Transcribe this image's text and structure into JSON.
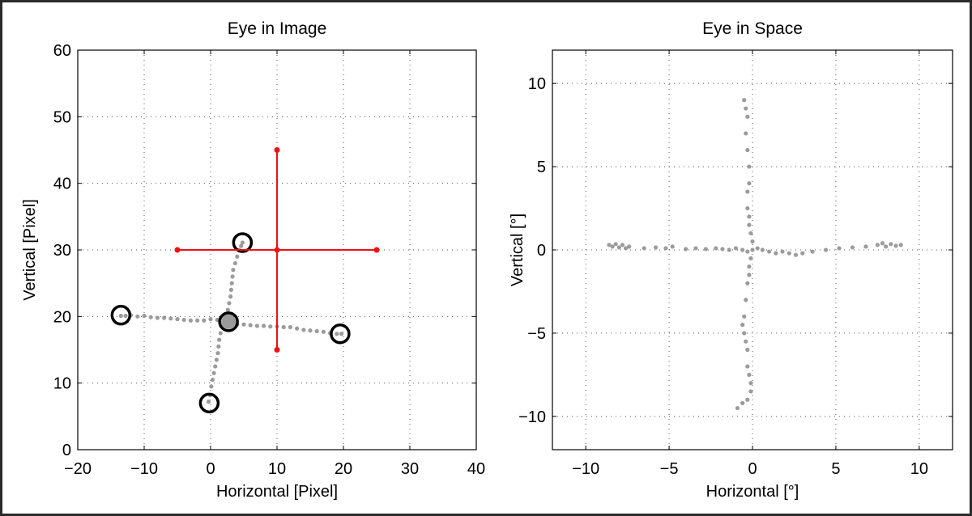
{
  "chart_data": [
    {
      "type": "scatter",
      "title": "Eye in Image",
      "xlabel": "Horizontal [Pixel]",
      "ylabel": "Vertical [Pixel]",
      "xlim": [
        -20,
        40
      ],
      "ylim": [
        0,
        60
      ],
      "xticks": [
        -20,
        -10,
        0,
        10,
        20,
        30,
        40
      ],
      "yticks": [
        0,
        10,
        20,
        30,
        40,
        50,
        60
      ],
      "xtick_labels": [
        "−20",
        "−10",
        "0",
        "10",
        "20",
        "30",
        "40"
      ],
      "ytick_labels": [
        "0",
        "10",
        "20",
        "30",
        "40",
        "50",
        "60"
      ],
      "grid": true,
      "point_color": "#9b9b9b",
      "series": [
        {
          "values": [
            [
              -13.5,
              20.1
            ],
            [
              -12.8,
              20.1
            ],
            [
              -12,
              20.2
            ],
            [
              -11,
              20
            ],
            [
              -10,
              20.1
            ],
            [
              -9,
              19.9
            ],
            [
              -8,
              19.8
            ],
            [
              -7,
              19.8
            ],
            [
              -6,
              19.7
            ],
            [
              -5,
              19.6
            ],
            [
              -4,
              19.5
            ],
            [
              -3,
              19.4
            ],
            [
              -2,
              19.4
            ],
            [
              -1,
              19.4
            ],
            [
              0,
              19.6
            ],
            [
              1,
              19.5
            ],
            [
              2,
              19.3
            ],
            [
              3,
              19.1
            ],
            [
              4,
              18.8
            ],
            [
              5,
              18.8
            ],
            [
              6,
              18.7
            ],
            [
              7,
              18.6
            ],
            [
              8,
              18.6
            ],
            [
              9,
              18.5
            ],
            [
              10,
              18.5
            ],
            [
              11,
              18.4
            ],
            [
              12,
              18.4
            ],
            [
              13,
              18.2
            ],
            [
              14,
              18
            ],
            [
              15,
              17.9
            ],
            [
              16,
              17.8
            ],
            [
              17,
              17.7
            ],
            [
              18,
              17.5
            ],
            [
              19,
              17.4
            ],
            [
              19.7,
              17.4
            ],
            [
              -0.3,
              7.2
            ],
            [
              -0.1,
              8.2
            ],
            [
              0.1,
              9.5
            ],
            [
              0.3,
              10.5
            ],
            [
              0.5,
              11.5
            ],
            [
              0.7,
              12.5
            ],
            [
              0.9,
              13.5
            ],
            [
              1.1,
              14.5
            ],
            [
              1.2,
              15.5
            ],
            [
              1.3,
              16.5
            ],
            [
              1.5,
              17.5
            ],
            [
              1.7,
              18.5
            ],
            [
              2,
              19.2
            ],
            [
              2.3,
              20
            ],
            [
              2.6,
              21
            ],
            [
              2.8,
              22
            ],
            [
              3,
              23
            ],
            [
              3.1,
              24
            ],
            [
              3.2,
              25
            ],
            [
              3.3,
              26
            ],
            [
              3.4,
              27
            ],
            [
              3.7,
              28
            ],
            [
              4,
              29
            ],
            [
              4.3,
              30
            ],
            [
              4.6,
              30.6
            ],
            [
              4.8,
              31.1
            ],
            [
              2.7,
              19.4
            ],
            [
              2.5,
              18.9
            ],
            [
              3,
              19.8
            ],
            [
              2.2,
              19.6
            ],
            [
              3.2,
              19
            ],
            [
              2.9,
              20.2
            ]
          ]
        }
      ],
      "circles": [
        [
          -13.5,
          20.2
        ],
        [
          4.8,
          31.1
        ],
        [
          2.7,
          19.2
        ],
        [
          19.5,
          17.4
        ],
        [
          -0.2,
          7
        ]
      ],
      "circle_color": "#000000",
      "overlay_color": "#ee1111",
      "overlay_lines": [
        {
          "x": [
            -5,
            25
          ],
          "y": [
            30,
            30
          ]
        },
        {
          "x": [
            10,
            10
          ],
          "y": [
            15,
            45
          ]
        }
      ],
      "overlay_points": [
        [
          -5,
          30
        ],
        [
          10,
          30
        ],
        [
          25,
          30
        ],
        [
          10,
          45
        ],
        [
          10,
          15
        ]
      ]
    },
    {
      "type": "scatter",
      "title": "Eye in Space",
      "xlabel": "Horizontal [°]",
      "ylabel": "Vertical [°]",
      "xlim": [
        -12,
        12
      ],
      "ylim": [
        -12,
        12
      ],
      "xticks": [
        -10,
        -5,
        0,
        5,
        10
      ],
      "yticks": [
        -10,
        -5,
        0,
        5,
        10
      ],
      "xtick_labels": [
        "−10",
        "−5",
        "0",
        "5",
        "10"
      ],
      "ytick_labels": [
        "−10",
        "−5",
        "0",
        "5",
        "10"
      ],
      "grid": true,
      "point_color": "#9b9b9b",
      "series": [
        {
          "values": [
            [
              -8.6,
              0.3
            ],
            [
              -8.4,
              0.2
            ],
            [
              -8.2,
              0.35
            ],
            [
              -8,
              0.15
            ],
            [
              -7.8,
              0.3
            ],
            [
              -7.6,
              0.1
            ],
            [
              -7.4,
              0.2
            ],
            [
              -6.5,
              0.1
            ],
            [
              -5.8,
              0.15
            ],
            [
              -5.2,
              0.1
            ],
            [
              -4.8,
              0.2
            ],
            [
              -4,
              0.05
            ],
            [
              -3.4,
              0.1
            ],
            [
              -2.8,
              0.05
            ],
            [
              -2.2,
              0.1
            ],
            [
              -1.8,
              0.05
            ],
            [
              -1.4,
              0
            ],
            [
              -1,
              0.1
            ],
            [
              -0.6,
              0
            ],
            [
              -0.3,
              -0.1
            ],
            [
              0,
              0
            ],
            [
              0.3,
              0.1
            ],
            [
              0.6,
              0
            ],
            [
              1,
              -0.1
            ],
            [
              1.4,
              -0.2
            ],
            [
              1.8,
              -0.1
            ],
            [
              2.2,
              -0.2
            ],
            [
              2.6,
              -0.3
            ],
            [
              3,
              -0.2
            ],
            [
              3.6,
              -0.1
            ],
            [
              4.4,
              0
            ],
            [
              5.2,
              0.1
            ],
            [
              6,
              0.15
            ],
            [
              6.8,
              0.2
            ],
            [
              7.5,
              0.3
            ],
            [
              7.8,
              0.4
            ],
            [
              8,
              0.2
            ],
            [
              8.3,
              0.35
            ],
            [
              8.6,
              0.25
            ],
            [
              8.9,
              0.3
            ],
            [
              -0.5,
              9
            ],
            [
              -0.4,
              8.5
            ],
            [
              -0.3,
              8
            ],
            [
              -0.4,
              7
            ],
            [
              -0.3,
              6
            ],
            [
              -0.2,
              5
            ],
            [
              -0.2,
              4
            ],
            [
              -0.3,
              3.5
            ],
            [
              -0.3,
              2.5
            ],
            [
              -0.2,
              2
            ],
            [
              -0.2,
              1.5
            ],
            [
              -0.1,
              1
            ],
            [
              0,
              0.5
            ],
            [
              -0.1,
              -0.5
            ],
            [
              -0.2,
              -1
            ],
            [
              -0.2,
              -1.5
            ],
            [
              -0.3,
              -2
            ],
            [
              -0.4,
              -3
            ],
            [
              -0.5,
              -4
            ],
            [
              -0.6,
              -4.5
            ],
            [
              -0.5,
              -5
            ],
            [
              -0.4,
              -5.5
            ],
            [
              -0.3,
              -6
            ],
            [
              -0.3,
              -7
            ],
            [
              -0.2,
              -7.5
            ],
            [
              -0.1,
              -8
            ],
            [
              -0.1,
              -8.5
            ],
            [
              -0.3,
              -9
            ],
            [
              -0.6,
              -9.2
            ],
            [
              -0.9,
              -9.5
            ]
          ]
        }
      ]
    }
  ]
}
